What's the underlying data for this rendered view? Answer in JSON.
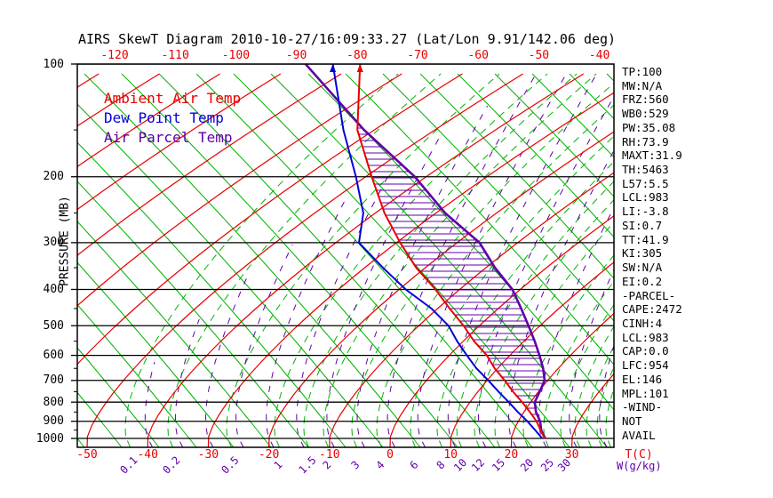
{
  "title": "AIRS SkewT Diagram 2010-10-27/16:09:33.27 (Lat/Lon 9.91/142.06 deg)",
  "colors": {
    "ambient": "#e80000",
    "dewpoint": "#0000d8",
    "parcel": "#6000a8",
    "isotherm": "#e80000",
    "dry_adiabat": "#00b400",
    "mixing_ratio": "#00b400",
    "moist_adiabat": "#6000a8",
    "isobar": "#000000",
    "text": "#000000"
  },
  "legend": [
    {
      "label": "Ambient Air Temp",
      "series": "ambient"
    },
    {
      "label": "Dew Point Temp",
      "series": "dewpoint"
    },
    {
      "label": "Air Parcel Temp",
      "series": "parcel"
    }
  ],
  "params": [
    "TP:100",
    "MW:N/A",
    "FRZ:560",
    "WB0:529",
    "PW:35.08",
    "RH:73.9",
    "MAXT:31.9",
    "TH:5463",
    "L57:5.5",
    "LCL:983",
    "LI:-3.8",
    "SI:0.7",
    "TT:41.9",
    "KI:305",
    "SW:N/A",
    "EI:0.2",
    "-PARCEL-",
    "CAPE:2472",
    "CINH:4",
    "LCL:983",
    "CAP:0.0",
    "LFC:954",
    "EL:146",
    "MPL:101",
    "-WIND-",
    "NOT",
    "AVAIL"
  ],
  "axes": {
    "pressure_label": "PRESSURE (MB)",
    "pressure_ticks": [
      100,
      200,
      300,
      400,
      500,
      600,
      700,
      800,
      900,
      1000
    ],
    "pressure_minor_ticks": [
      150,
      250,
      350,
      450,
      550,
      650,
      750,
      850,
      950
    ],
    "temp_top_ticks": [
      -120,
      -110,
      -100,
      -90,
      -80,
      -70,
      -60,
      -50,
      -40
    ],
    "temp_bottom_ticks": [
      -50,
      -40,
      -30,
      -20,
      -10,
      0,
      10,
      20,
      30
    ],
    "temp_unit": "T(C)",
    "mixing_ratio_ticks": [
      "0.1",
      "0.2",
      "0.5",
      "1",
      "1.5",
      "2",
      "3",
      "4",
      "6",
      "8",
      "10",
      "12",
      "15",
      "20",
      "25",
      "30"
    ],
    "mixing_ratio_unit": "W(g/kg)"
  },
  "chart_data": {
    "type": "line",
    "title": "AIRS SkewT Diagram 2010-10-27/16:09:33.27 (Lat/Lon 9.91/142.06 deg)",
    "xlabel": "T(C)",
    "ylabel": "PRESSURE (MB)",
    "y_scale": "log",
    "y_range": [
      100,
      1050
    ],
    "x_ticks_bottom": [
      -50,
      -40,
      -30,
      -20,
      -10,
      0,
      10,
      20,
      30
    ],
    "x_ticks_top": [
      -120,
      -110,
      -100,
      -90,
      -80,
      -70,
      -60,
      -50,
      -40
    ],
    "grid": "skew-t (isobars, skewed isotherms, dry adiabats, moist adiabats, mixing-ratio lines)",
    "legend_position": "top-left inside plot",
    "hatched_region": "CAPE area between Ambient Air Temp and Air Parcel Temp from ~954mb (LFC) to ~146mb (EL)",
    "series": [
      {
        "name": "Ambient Air Temp",
        "color_key": "ambient",
        "points_pressure_mb_temp_c": [
          [
            100,
            -79.5
          ],
          [
            150,
            -62.8
          ],
          [
            200,
            -49.0
          ],
          [
            250,
            -38.5
          ],
          [
            300,
            -29.4
          ],
          [
            350,
            -21.5
          ],
          [
            400,
            -14.0
          ],
          [
            450,
            -8.0
          ],
          [
            500,
            -2.6
          ],
          [
            550,
            1.8
          ],
          [
            600,
            6.2
          ],
          [
            650,
            9.5
          ],
          [
            700,
            12.9
          ],
          [
            750,
            15.8
          ],
          [
            800,
            18.6
          ],
          [
            850,
            21.0
          ],
          [
            900,
            23.0
          ],
          [
            950,
            24.4
          ],
          [
            1000,
            25.5
          ]
        ]
      },
      {
        "name": "Dew Point Temp",
        "color_key": "dewpoint",
        "points_pressure_mb_temp_c": [
          [
            100,
            -84.0
          ],
          [
            150,
            -65.1
          ],
          [
            200,
            -51.6
          ],
          [
            250,
            -42.0
          ],
          [
            300,
            -36.2
          ],
          [
            350,
            -27.0
          ],
          [
            400,
            -18.9
          ],
          [
            450,
            -11.0
          ],
          [
            500,
            -5.1
          ],
          [
            550,
            -1.0
          ],
          [
            600,
            2.9
          ],
          [
            650,
            6.5
          ],
          [
            700,
            10.2
          ],
          [
            750,
            13.4
          ],
          [
            800,
            16.4
          ],
          [
            850,
            19.0
          ],
          [
            900,
            21.5
          ],
          [
            950,
            23.5
          ],
          [
            1000,
            25.1
          ]
        ]
      },
      {
        "name": "Air Parcel Temp",
        "color_key": "parcel",
        "points_pressure_mb_temp_c": [
          [
            100,
            -88.5
          ],
          [
            150,
            -61.7
          ],
          [
            200,
            -41.9
          ],
          [
            250,
            -28.5
          ],
          [
            300,
            -16.3
          ],
          [
            350,
            -8.5
          ],
          [
            400,
            -1.3
          ],
          [
            450,
            3.8
          ],
          [
            500,
            8.1
          ],
          [
            550,
            11.8
          ],
          [
            600,
            14.9
          ],
          [
            650,
            17.5
          ],
          [
            700,
            19.5
          ],
          [
            750,
            20.2
          ],
          [
            800,
            20.7
          ],
          [
            850,
            22.0
          ],
          [
            900,
            23.6
          ],
          [
            950,
            24.5
          ],
          [
            1000,
            25.6
          ]
        ]
      }
    ]
  }
}
